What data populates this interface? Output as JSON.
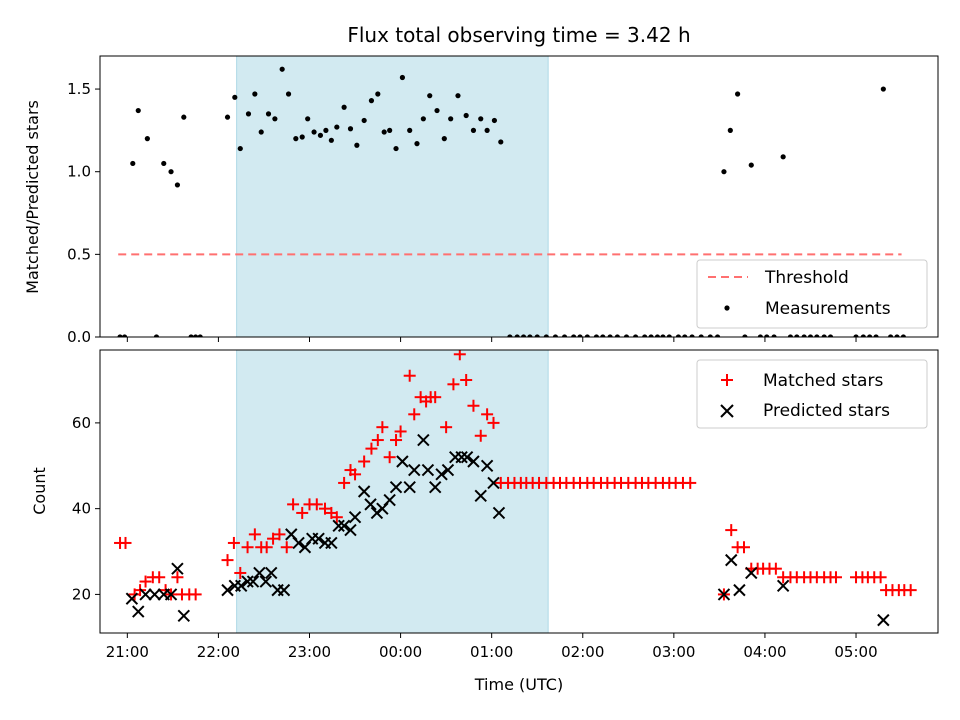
{
  "chart_data": {
    "title": "Flux total observing time = 3.42 h",
    "xlabel": "Time (UTC)",
    "x_unit": "hours since 00:00 UTC",
    "xlim": [
      -3.3,
      5.9
    ],
    "shaded_span": [
      -1.8,
      1.62
    ],
    "xticks": [
      {
        "v": -3,
        "label": "21:00"
      },
      {
        "v": -2,
        "label": "22:00"
      },
      {
        "v": -1,
        "label": "23:00"
      },
      {
        "v": 0,
        "label": "00:00"
      },
      {
        "v": 1,
        "label": "01:00"
      },
      {
        "v": 2,
        "label": "02:00"
      },
      {
        "v": 3,
        "label": "03:00"
      },
      {
        "v": 4,
        "label": "04:00"
      },
      {
        "v": 5,
        "label": "05:00"
      }
    ],
    "top": {
      "type": "scatter",
      "ylabel": "Matched/Predicted stars",
      "ylim": [
        0,
        1.7
      ],
      "yticks": [
        {
          "v": 0,
          "label": "0.0"
        },
        {
          "v": 0.5,
          "label": "0.5"
        },
        {
          "v": 1.0,
          "label": "1.0"
        },
        {
          "v": 1.5,
          "label": "1.5"
        }
      ],
      "threshold": {
        "name": "Threshold",
        "value": 0.5,
        "x_range": [
          -3.1,
          5.5
        ],
        "color": "#ff7070"
      },
      "measurements": {
        "name": "Measurements",
        "color": "#000000",
        "points": [
          [
            -3.08,
            0
          ],
          [
            -3.03,
            0
          ],
          [
            -2.94,
            1.05
          ],
          [
            -2.88,
            1.37
          ],
          [
            -2.78,
            1.2
          ],
          [
            -2.68,
            0
          ],
          [
            -2.6,
            1.05
          ],
          [
            -2.52,
            1.0
          ],
          [
            -2.45,
            0.92
          ],
          [
            -2.38,
            1.33
          ],
          [
            -2.3,
            0
          ],
          [
            -2.25,
            0
          ],
          [
            -2.2,
            0
          ],
          [
            -1.9,
            1.33
          ],
          [
            -1.82,
            1.45
          ],
          [
            -1.76,
            1.14
          ],
          [
            -1.67,
            1.35
          ],
          [
            -1.6,
            1.47
          ],
          [
            -1.53,
            1.24
          ],
          [
            -1.45,
            1.35
          ],
          [
            -1.38,
            1.32
          ],
          [
            -1.3,
            1.62
          ],
          [
            -1.23,
            1.47
          ],
          [
            -1.15,
            1.2
          ],
          [
            -1.08,
            1.21
          ],
          [
            -1.02,
            1.32
          ],
          [
            -0.95,
            1.24
          ],
          [
            -0.88,
            1.22
          ],
          [
            -0.82,
            1.25
          ],
          [
            -0.76,
            1.19
          ],
          [
            -0.7,
            1.27
          ],
          [
            -0.62,
            1.39
          ],
          [
            -0.55,
            1.26
          ],
          [
            -0.48,
            1.16
          ],
          [
            -0.4,
            1.31
          ],
          [
            -0.32,
            1.43
          ],
          [
            -0.25,
            1.47
          ],
          [
            -0.18,
            1.24
          ],
          [
            -0.12,
            1.25
          ],
          [
            -0.05,
            1.14
          ],
          [
            0.02,
            1.57
          ],
          [
            0.1,
            1.25
          ],
          [
            0.18,
            1.17
          ],
          [
            0.25,
            1.32
          ],
          [
            0.32,
            1.46
          ],
          [
            0.4,
            1.37
          ],
          [
            0.48,
            1.2
          ],
          [
            0.55,
            1.32
          ],
          [
            0.63,
            1.46
          ],
          [
            0.72,
            1.34
          ],
          [
            0.8,
            1.25
          ],
          [
            0.88,
            1.32
          ],
          [
            0.95,
            1.25
          ],
          [
            1.03,
            1.31
          ],
          [
            1.1,
            1.18
          ],
          [
            1.2,
            0
          ],
          [
            1.28,
            0
          ],
          [
            1.35,
            0
          ],
          [
            1.42,
            0
          ],
          [
            1.5,
            0
          ],
          [
            1.6,
            0
          ],
          [
            1.7,
            0
          ],
          [
            1.8,
            0
          ],
          [
            1.9,
            0
          ],
          [
            1.97,
            0
          ],
          [
            2.05,
            0
          ],
          [
            2.15,
            0
          ],
          [
            2.22,
            0
          ],
          [
            2.3,
            0
          ],
          [
            2.38,
            0
          ],
          [
            2.48,
            0
          ],
          [
            2.58,
            0
          ],
          [
            2.68,
            0
          ],
          [
            2.75,
            0
          ],
          [
            2.82,
            0
          ],
          [
            2.88,
            0
          ],
          [
            2.95,
            0
          ],
          [
            3.05,
            0
          ],
          [
            3.12,
            0
          ],
          [
            3.2,
            0
          ],
          [
            3.3,
            0
          ],
          [
            3.4,
            0
          ],
          [
            3.48,
            0
          ],
          [
            3.55,
            1.0
          ],
          [
            3.62,
            1.25
          ],
          [
            3.7,
            1.47
          ],
          [
            3.78,
            0
          ],
          [
            3.85,
            1.04
          ],
          [
            3.95,
            0
          ],
          [
            4.02,
            0
          ],
          [
            4.1,
            0
          ],
          [
            4.2,
            1.09
          ],
          [
            4.28,
            0
          ],
          [
            4.35,
            0
          ],
          [
            4.43,
            0
          ],
          [
            4.5,
            0
          ],
          [
            4.57,
            0
          ],
          [
            4.65,
            0
          ],
          [
            4.72,
            0
          ],
          [
            5.0,
            0
          ],
          [
            5.08,
            0
          ],
          [
            5.15,
            0
          ],
          [
            5.22,
            0
          ],
          [
            5.3,
            1.5
          ],
          [
            5.38,
            0
          ],
          [
            5.45,
            0
          ],
          [
            5.52,
            0
          ]
        ]
      },
      "legend": {
        "placement": "lower-right",
        "entries": [
          "Threshold",
          "Measurements"
        ]
      }
    },
    "bottom": {
      "type": "scatter",
      "ylabel": "Count",
      "ylim": [
        11,
        77
      ],
      "yticks": [
        {
          "v": 20,
          "label": "20"
        },
        {
          "v": 40,
          "label": "40"
        },
        {
          "v": 60,
          "label": "60"
        }
      ],
      "series": [
        {
          "name": "Matched stars",
          "marker": "plus",
          "color": "#ff0000",
          "points": [
            [
              -3.08,
              32
            ],
            [
              -3.02,
              32
            ],
            [
              -2.92,
              20
            ],
            [
              -2.86,
              21
            ],
            [
              -2.8,
              23
            ],
            [
              -2.72,
              24
            ],
            [
              -2.65,
              24
            ],
            [
              -2.58,
              21
            ],
            [
              -2.52,
              20
            ],
            [
              -2.45,
              24
            ],
            [
              -2.4,
              20
            ],
            [
              -2.32,
              20
            ],
            [
              -2.25,
              20
            ],
            [
              -1.9,
              28
            ],
            [
              -1.83,
              32
            ],
            [
              -1.76,
              25
            ],
            [
              -1.68,
              31
            ],
            [
              -1.6,
              34
            ],
            [
              -1.53,
              31
            ],
            [
              -1.47,
              31
            ],
            [
              -1.4,
              33
            ],
            [
              -1.33,
              34
            ],
            [
              -1.25,
              31
            ],
            [
              -1.18,
              41
            ],
            [
              -1.08,
              39
            ],
            [
              -1.0,
              41
            ],
            [
              -0.92,
              41
            ],
            [
              -0.83,
              40
            ],
            [
              -0.76,
              39
            ],
            [
              -0.7,
              38
            ],
            [
              -0.62,
              46
            ],
            [
              -0.55,
              49
            ],
            [
              -0.5,
              48
            ],
            [
              -0.4,
              51
            ],
            [
              -0.32,
              54
            ],
            [
              -0.25,
              56
            ],
            [
              -0.2,
              59
            ],
            [
              -0.12,
              52
            ],
            [
              -0.05,
              56
            ],
            [
              0.0,
              58
            ],
            [
              0.1,
              71
            ],
            [
              0.15,
              62
            ],
            [
              0.22,
              66
            ],
            [
              0.28,
              65
            ],
            [
              0.33,
              66
            ],
            [
              0.38,
              66
            ],
            [
              0.5,
              59
            ],
            [
              0.58,
              69
            ],
            [
              0.65,
              76
            ],
            [
              0.72,
              70
            ],
            [
              0.8,
              64
            ],
            [
              0.88,
              57
            ],
            [
              0.95,
              62
            ],
            [
              1.02,
              60
            ],
            [
              1.1,
              46
            ],
            [
              1.18,
              46
            ],
            [
              1.25,
              46
            ],
            [
              1.32,
              46
            ],
            [
              1.38,
              46
            ],
            [
              1.45,
              46
            ],
            [
              1.52,
              46
            ],
            [
              1.6,
              46
            ],
            [
              1.68,
              46
            ],
            [
              1.75,
              46
            ],
            [
              1.82,
              46
            ],
            [
              1.9,
              46
            ],
            [
              1.97,
              46
            ],
            [
              2.05,
              46
            ],
            [
              2.12,
              46
            ],
            [
              2.2,
              46
            ],
            [
              2.27,
              46
            ],
            [
              2.35,
              46
            ],
            [
              2.42,
              46
            ],
            [
              2.5,
              46
            ],
            [
              2.58,
              46
            ],
            [
              2.65,
              46
            ],
            [
              2.72,
              46
            ],
            [
              2.8,
              46
            ],
            [
              2.88,
              46
            ],
            [
              2.95,
              46
            ],
            [
              3.02,
              46
            ],
            [
              3.1,
              46
            ],
            [
              3.18,
              46
            ],
            [
              3.55,
              20
            ],
            [
              3.63,
              35
            ],
            [
              3.7,
              31
            ],
            [
              3.77,
              31
            ],
            [
              3.85,
              26
            ],
            [
              3.92,
              26
            ],
            [
              3.98,
              26
            ],
            [
              4.05,
              26
            ],
            [
              4.12,
              26
            ],
            [
              4.2,
              24
            ],
            [
              4.28,
              24
            ],
            [
              4.35,
              24
            ],
            [
              4.43,
              24
            ],
            [
              4.5,
              24
            ],
            [
              4.57,
              24
            ],
            [
              4.65,
              24
            ],
            [
              4.72,
              24
            ],
            [
              4.78,
              24
            ],
            [
              5.0,
              24
            ],
            [
              5.07,
              24
            ],
            [
              5.13,
              24
            ],
            [
              5.2,
              24
            ],
            [
              5.27,
              24
            ],
            [
              5.33,
              21
            ],
            [
              5.4,
              21
            ],
            [
              5.47,
              21
            ],
            [
              5.53,
              21
            ],
            [
              5.6,
              21
            ]
          ]
        },
        {
          "name": "Predicted stars",
          "marker": "x",
          "color": "#000000",
          "points": [
            [
              -2.95,
              19
            ],
            [
              -2.88,
              16
            ],
            [
              -2.8,
              20
            ],
            [
              -2.7,
              20
            ],
            [
              -2.6,
              20
            ],
            [
              -2.52,
              20
            ],
            [
              -2.45,
              26
            ],
            [
              -2.38,
              15
            ],
            [
              -1.9,
              21
            ],
            [
              -1.82,
              22
            ],
            [
              -1.75,
              22
            ],
            [
              -1.68,
              23
            ],
            [
              -1.62,
              23
            ],
            [
              -1.55,
              25
            ],
            [
              -1.48,
              23
            ],
            [
              -1.42,
              25
            ],
            [
              -1.35,
              21
            ],
            [
              -1.28,
              21
            ],
            [
              -1.2,
              34
            ],
            [
              -1.12,
              32
            ],
            [
              -1.05,
              31
            ],
            [
              -0.97,
              33
            ],
            [
              -0.9,
              33
            ],
            [
              -0.83,
              32
            ],
            [
              -0.76,
              32
            ],
            [
              -0.68,
              36
            ],
            [
              -0.62,
              36
            ],
            [
              -0.55,
              35
            ],
            [
              -0.5,
              38
            ],
            [
              -0.4,
              44
            ],
            [
              -0.33,
              41
            ],
            [
              -0.26,
              39
            ],
            [
              -0.2,
              40
            ],
            [
              -0.12,
              42
            ],
            [
              -0.05,
              45
            ],
            [
              0.02,
              51
            ],
            [
              0.1,
              45
            ],
            [
              0.15,
              49
            ],
            [
              0.25,
              56
            ],
            [
              0.3,
              49
            ],
            [
              0.38,
              45
            ],
            [
              0.45,
              48
            ],
            [
              0.52,
              49
            ],
            [
              0.6,
              52
            ],
            [
              0.67,
              52
            ],
            [
              0.73,
              52
            ],
            [
              0.8,
              51
            ],
            [
              0.88,
              43
            ],
            [
              0.95,
              50
            ],
            [
              1.02,
              46
            ],
            [
              1.08,
              39
            ],
            [
              3.55,
              20
            ],
            [
              3.63,
              28
            ],
            [
              3.72,
              21
            ],
            [
              3.85,
              25
            ],
            [
              4.2,
              22
            ],
            [
              5.3,
              14
            ]
          ]
        }
      ],
      "legend": {
        "placement": "top-right",
        "entries": [
          "Matched stars",
          "Predicted stars"
        ]
      }
    }
  }
}
